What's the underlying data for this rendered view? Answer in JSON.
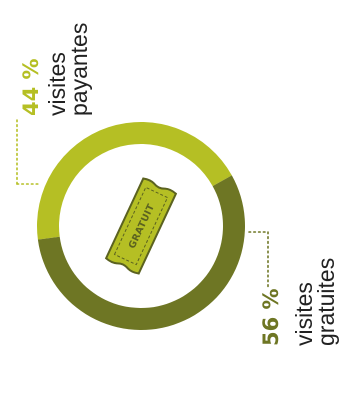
{
  "chart_data": {
    "type": "pie",
    "donut": true,
    "slices": [
      {
        "value": 44,
        "pct_label": "44 %",
        "label_lines": [
          "visites",
          "payantes"
        ],
        "color": "#b5bf24"
      },
      {
        "value": 56,
        "pct_label": "56 %",
        "label_lines": [
          "visites",
          "gratuites"
        ],
        "color": "#6e7624"
      }
    ],
    "center_icon": "ticket-icon",
    "center_text": "GRATUIT"
  },
  "colors": {
    "light": "#b5bf24",
    "dark": "#6e7624",
    "text": "#222222",
    "ticket_fill": "#b5bf24",
    "ticket_stroke": "#5b6220",
    "ticket_text": "#5b6220"
  }
}
